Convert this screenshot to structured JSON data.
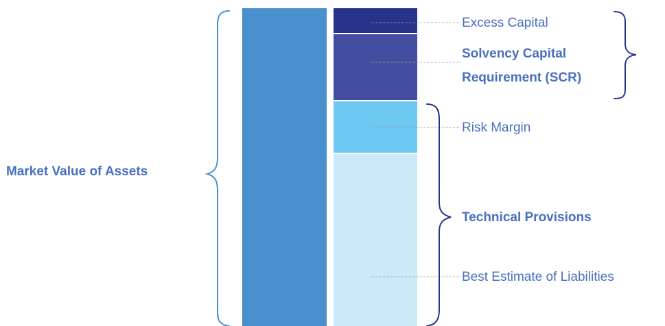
{
  "diagram": {
    "assets_label": "Market Value of Assets",
    "components": [
      {
        "key": "excess_capital",
        "label": "Excess Capital",
        "bold": false,
        "color": "#28338a"
      },
      {
        "key": "scr",
        "label_line1": "Solvency Capital",
        "label_line2": "Requirement (SCR)",
        "bold": true,
        "color": "#434ea0"
      },
      {
        "key": "risk_margin",
        "label": "Risk Margin",
        "bold": false,
        "color": "#6dc8f2"
      },
      {
        "key": "best_estimate",
        "label": "Best Estimate of Liabilities",
        "bold": false,
        "color": "#cce9f9"
      }
    ],
    "technical_provisions_label": "Technical Provisions",
    "colors": {
      "assets_bar": "#4a8fcd",
      "text": "#4a6fc0",
      "assets_brace": "#4a8fcd",
      "right_braces": "#28338a",
      "leader_lines": "#a0a0a0"
    }
  }
}
